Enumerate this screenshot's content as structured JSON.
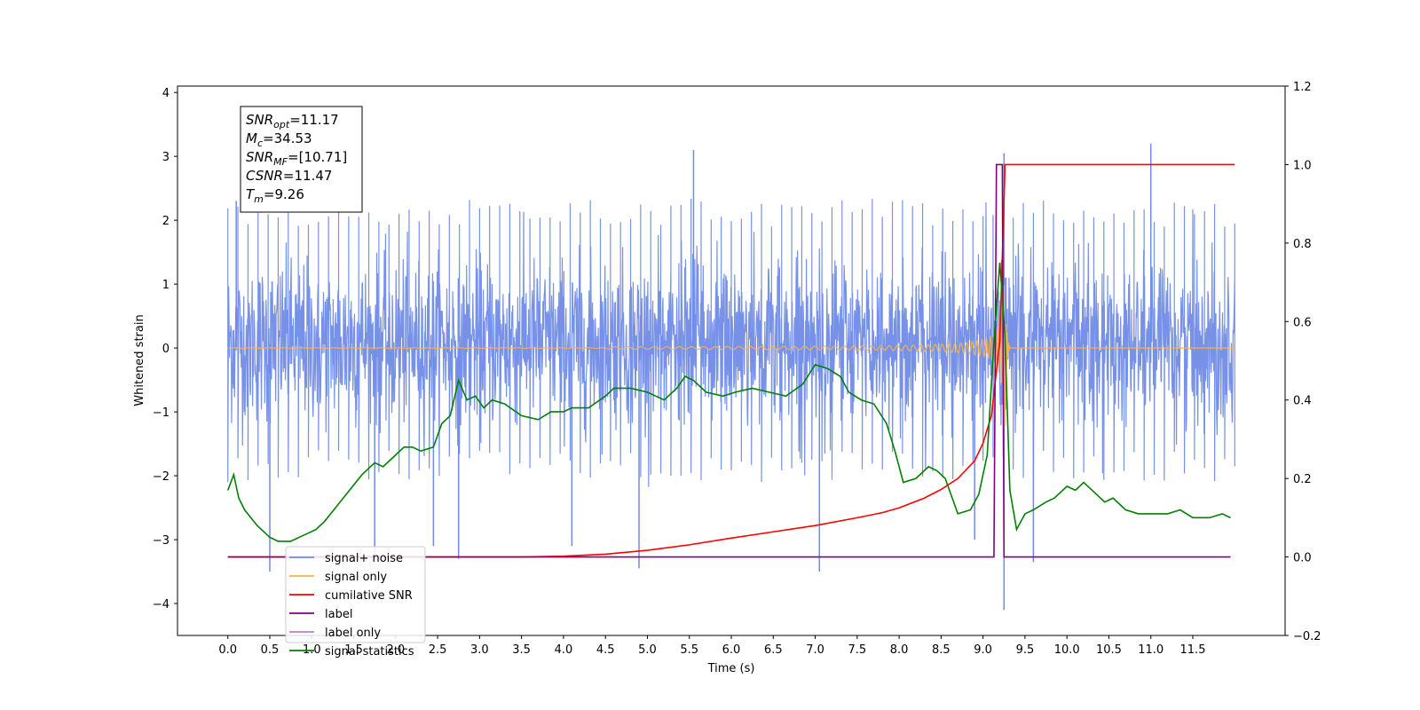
{
  "chart_data": {
    "type": "line",
    "xlabel": "Time (s)",
    "ylabel_left": "Whitened strain",
    "ylabel_right": "",
    "xlim": [
      -0.6,
      12.6
    ],
    "ylim_left": [
      -4.5,
      4.1
    ],
    "ylim_right": [
      -0.2,
      1.2
    ],
    "x_ticks": [
      "0.0",
      "0.5",
      "1.0",
      "1.5",
      "2.0",
      "2.5",
      "3.0",
      "3.5",
      "4.0",
      "4.5",
      "5.0",
      "5.5",
      "6.0",
      "6.5",
      "7.0",
      "7.5",
      "8.0",
      "8.5",
      "9.0",
      "9.5",
      "10.0",
      "10.5",
      "11.0",
      "11.5"
    ],
    "x_tick_values": [
      0,
      0.5,
      1,
      1.5,
      2,
      2.5,
      3,
      3.5,
      4,
      4.5,
      5,
      5.5,
      6,
      6.5,
      7,
      7.5,
      8,
      8.5,
      9,
      9.5,
      10,
      10.5,
      11,
      11.5
    ],
    "y_ticks_left": [
      "−4",
      "−3",
      "−2",
      "−1",
      "0",
      "1",
      "2",
      "3",
      "4"
    ],
    "y_tick_values_left": [
      -4,
      -3,
      -2,
      -1,
      0,
      1,
      2,
      3,
      4
    ],
    "y_ticks_right": [
      "−0.2",
      "0.0",
      "0.2",
      "0.4",
      "0.6",
      "0.8",
      "1.0",
      "1.2"
    ],
    "y_tick_values_right": [
      -0.2,
      0,
      0.2,
      0.4,
      0.6,
      0.8,
      1.0,
      1.2
    ],
    "grid": false,
    "legend_position": "lower-left",
    "annotation": {
      "lines": [
        {
          "main": "SNR",
          "sub": "opt",
          "rest": "=11.17"
        },
        {
          "main": "M",
          "sub": "c",
          "rest": "=34.53"
        },
        {
          "main": "SNR",
          "sub": "MF",
          "rest": "=[10.71]"
        },
        {
          "main": "CSNR",
          "sub": "",
          "rest": "=11.47"
        },
        {
          "main": "T",
          "sub": "m",
          "rest": "=9.26"
        }
      ]
    },
    "noise_envelope": {
      "x_range": [
        0,
        12.0
      ],
      "typical_range": [
        -1.7,
        1.9
      ],
      "extreme_range": [
        -4.1,
        3.2
      ]
    },
    "series": [
      {
        "name": "signal+ noise",
        "color": "#6f8be6",
        "axis": "left",
        "style": "noise",
        "spikes": [
          {
            "x": 5.55,
            "y": 3.1
          },
          {
            "x": 11.0,
            "y": 3.2
          },
          {
            "x": 9.25,
            "y": 3.05
          },
          {
            "x": 0.1,
            "y": 2.3
          },
          {
            "x": 0.5,
            "y": -3.5
          },
          {
            "x": 1.75,
            "y": -3.3
          },
          {
            "x": 2.45,
            "y": -3.1
          },
          {
            "x": 2.75,
            "y": -3.3
          },
          {
            "x": 4.9,
            "y": -3.45
          },
          {
            "x": 7.05,
            "y": -3.5
          },
          {
            "x": 9.25,
            "y": -4.1
          },
          {
            "x": 9.6,
            "y": -3.35
          },
          {
            "x": 4.1,
            "y": -3.1
          },
          {
            "x": 8.9,
            "y": -3.0
          }
        ]
      },
      {
        "name": "signal only",
        "color": "#ffb347",
        "axis": "left",
        "style": "chirp",
        "chirp": {
          "t_merge": 9.26,
          "t_start": 0.0,
          "amp_start": 0.01,
          "amp_peak": 1.35,
          "end": 12.0
        }
      },
      {
        "name": "cumilative SNR",
        "color": "#ff0000",
        "axis": "right",
        "x": [
          0.0,
          3.5,
          4.0,
          4.5,
          5.0,
          5.5,
          6.0,
          6.5,
          7.0,
          7.5,
          7.8,
          8.0,
          8.3,
          8.5,
          8.7,
          8.9,
          9.0,
          9.1,
          9.2,
          9.26,
          9.26,
          12.0
        ],
        "y": [
          0.0,
          0.0,
          0.002,
          0.007,
          0.017,
          0.031,
          0.048,
          0.064,
          0.08,
          0.1,
          0.113,
          0.125,
          0.15,
          0.172,
          0.2,
          0.245,
          0.29,
          0.36,
          0.55,
          0.98,
          1.0,
          1.0
        ]
      },
      {
        "name": "label",
        "color": "#800080",
        "axis": "right",
        "x": [
          0.0,
          9.13,
          9.16,
          9.23,
          9.25,
          11.95
        ],
        "y": [
          0.0,
          0.0,
          1.0,
          1.0,
          0.0,
          0.0
        ]
      },
      {
        "name": "label only",
        "color": "#c080c0",
        "axis": "right",
        "hidden": true,
        "x": [],
        "y": []
      },
      {
        "name": "signal statistics",
        "color": "#008000",
        "axis": "right",
        "x": [
          0.0,
          0.07,
          0.13,
          0.2,
          0.35,
          0.5,
          0.6,
          0.75,
          0.85,
          0.95,
          1.05,
          1.15,
          1.3,
          1.45,
          1.6,
          1.75,
          1.85,
          2.0,
          2.1,
          2.2,
          2.3,
          2.45,
          2.55,
          2.65,
          2.75,
          2.85,
          2.95,
          3.05,
          3.15,
          3.3,
          3.5,
          3.7,
          3.85,
          4.0,
          4.1,
          4.3,
          4.5,
          4.6,
          4.8,
          5.0,
          5.2,
          5.35,
          5.45,
          5.55,
          5.7,
          5.9,
          6.05,
          6.25,
          6.45,
          6.65,
          6.85,
          7.0,
          7.15,
          7.3,
          7.4,
          7.55,
          7.7,
          7.85,
          7.95,
          8.05,
          8.2,
          8.35,
          8.45,
          8.55,
          8.7,
          8.85,
          8.95,
          9.05,
          9.13,
          9.2,
          9.26,
          9.32,
          9.4,
          9.5,
          9.6,
          9.75,
          9.85,
          10.0,
          10.1,
          10.2,
          10.3,
          10.45,
          10.55,
          10.7,
          10.85,
          11.0,
          11.2,
          11.35,
          11.5,
          11.7,
          11.85,
          11.95
        ],
        "y": [
          0.17,
          0.21,
          0.15,
          0.12,
          0.08,
          0.05,
          0.04,
          0.04,
          0.05,
          0.06,
          0.07,
          0.09,
          0.13,
          0.17,
          0.21,
          0.24,
          0.23,
          0.26,
          0.28,
          0.28,
          0.27,
          0.28,
          0.34,
          0.36,
          0.45,
          0.4,
          0.41,
          0.38,
          0.4,
          0.39,
          0.36,
          0.35,
          0.37,
          0.37,
          0.38,
          0.38,
          0.41,
          0.43,
          0.43,
          0.42,
          0.4,
          0.43,
          0.46,
          0.45,
          0.42,
          0.41,
          0.42,
          0.43,
          0.42,
          0.41,
          0.44,
          0.49,
          0.48,
          0.46,
          0.42,
          0.4,
          0.39,
          0.34,
          0.27,
          0.19,
          0.2,
          0.23,
          0.22,
          0.2,
          0.11,
          0.12,
          0.16,
          0.26,
          0.55,
          0.75,
          0.57,
          0.17,
          0.07,
          0.11,
          0.12,
          0.14,
          0.15,
          0.18,
          0.17,
          0.19,
          0.17,
          0.14,
          0.15,
          0.12,
          0.11,
          0.11,
          0.11,
          0.12,
          0.1,
          0.1,
          0.11,
          0.1
        ]
      }
    ]
  }
}
